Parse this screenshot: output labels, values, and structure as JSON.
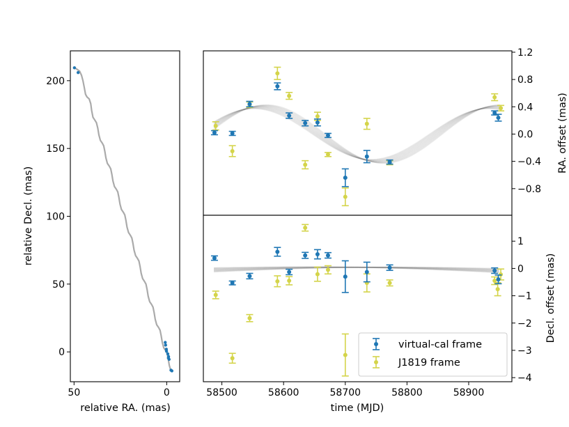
{
  "colors": {
    "virtual": "#1f77b4",
    "j1819": "#d4d44a",
    "track": "#aaaaaa",
    "model": "#555555"
  },
  "chart_data": [
    {
      "id": "sky-track",
      "type": "line",
      "xlabel": "relative RA. (mas)",
      "ylabel": "relative Decl. (mas)",
      "xlim": [
        52,
        -7
      ],
      "ylim": [
        -22,
        222
      ],
      "xticks": [
        50,
        0
      ],
      "yticks": [
        0,
        50,
        100,
        150,
        200
      ],
      "track": [
        [
          50,
          210
        ],
        [
          47,
          207
        ],
        [
          46,
          204
        ],
        [
          45.2,
          200
        ],
        [
          44.5,
          195
        ],
        [
          43.8,
          190
        ],
        [
          43,
          188
        ],
        [
          41.8,
          186.5
        ],
        [
          41,
          183
        ],
        [
          40.5,
          178
        ],
        [
          39.8,
          173
        ],
        [
          38.8,
          171
        ],
        [
          37.9,
          169
        ],
        [
          37.2,
          165
        ],
        [
          36.6,
          160
        ],
        [
          35.8,
          156
        ],
        [
          34.8,
          154
        ],
        [
          34,
          152
        ],
        [
          33.4,
          148
        ],
        [
          32.8,
          143
        ],
        [
          32,
          139
        ],
        [
          31,
          137
        ],
        [
          30.2,
          135
        ],
        [
          29.6,
          131
        ],
        [
          29,
          126
        ],
        [
          28.2,
          122
        ],
        [
          27.2,
          120
        ],
        [
          26.4,
          118
        ],
        [
          25.8,
          114
        ],
        [
          25.2,
          109
        ],
        [
          24.4,
          105
        ],
        [
          23.4,
          103
        ],
        [
          22.6,
          101
        ],
        [
          22,
          97
        ],
        [
          21.4,
          92
        ],
        [
          20.6,
          88
        ],
        [
          19.6,
          86
        ],
        [
          18.8,
          84
        ],
        [
          18.2,
          80
        ],
        [
          17.6,
          75
        ],
        [
          16.8,
          71
        ],
        [
          15.8,
          69
        ],
        [
          15,
          67
        ],
        [
          14.4,
          63
        ],
        [
          13.8,
          58
        ],
        [
          13,
          54
        ],
        [
          12,
          52
        ],
        [
          11.2,
          50
        ],
        [
          10.6,
          46
        ],
        [
          10,
          41
        ],
        [
          9.2,
          37
        ],
        [
          8.2,
          35
        ],
        [
          7.4,
          33
        ],
        [
          6.8,
          29
        ],
        [
          6.2,
          24
        ],
        [
          5.4,
          20
        ],
        [
          4.4,
          18
        ],
        [
          3.6,
          16
        ],
        [
          3,
          12
        ],
        [
          2.4,
          7
        ],
        [
          1.6,
          3
        ],
        [
          0.6,
          1
        ],
        [
          -0.2,
          -1
        ],
        [
          -0.8,
          -5
        ],
        [
          -1.4,
          -10
        ],
        [
          -2.3,
          -14
        ]
      ],
      "points": [
        [
          49.8,
          209.5
        ],
        [
          47.8,
          206
        ],
        [
          0.8,
          7
        ],
        [
          0.6,
          5
        ],
        [
          0.2,
          2
        ],
        [
          0.1,
          0.5
        ],
        [
          -0.6,
          -1.5
        ],
        [
          -1,
          -3.5
        ],
        [
          -0.9,
          -4.5
        ],
        [
          -1.3,
          -5.5
        ],
        [
          -2.3,
          -13.5
        ],
        [
          -2.8,
          -14
        ]
      ]
    },
    {
      "id": "ra-offset",
      "type": "scatter",
      "ylabel": "RA. offset (mas)",
      "xlim": [
        58470,
        58970
      ],
      "ylim": [
        -1.19,
        1.22
      ],
      "yticks": [
        1.2,
        0.8,
        0.4,
        0.0,
        -0.4,
        -0.8
      ],
      "ytick_labels": [
        "1.2",
        "0.8",
        "0.4",
        "0.0",
        "−0.4",
        "−0.8"
      ],
      "model": {
        "amplitude": 0.4,
        "period_days": 380,
        "phase_zero_mjd": 58467
      },
      "series": [
        {
          "name": "virtual-cal frame",
          "x": [
            58488,
            58517,
            58545,
            58590,
            58609,
            58635,
            58655,
            58672,
            58700,
            58735,
            58772,
            58942,
            58948
          ],
          "y": [
            0.02,
            0.01,
            0.44,
            0.7,
            0.27,
            0.16,
            0.17,
            -0.02,
            -0.64,
            -0.33,
            -0.41,
            0.31,
            0.24
          ],
          "err": [
            0.03,
            0.03,
            0.04,
            0.05,
            0.04,
            0.04,
            0.05,
            0.03,
            0.13,
            0.09,
            0.03,
            0.03,
            0.05
          ]
        },
        {
          "name": "J1819 frame",
          "x": [
            58490,
            58517,
            58545,
            58590,
            58609,
            58635,
            58655,
            58672,
            58700,
            58735,
            58772,
            58942,
            58952
          ],
          "y": [
            0.12,
            -0.25,
            0.43,
            0.89,
            0.56,
            -0.45,
            0.26,
            -0.3,
            -0.92,
            0.15,
            -0.42,
            0.54,
            0.38
          ],
          "err": [
            0.06,
            0.08,
            0.04,
            0.09,
            0.05,
            0.06,
            0.06,
            0.03,
            0.13,
            0.08,
            0.03,
            0.05,
            0.04
          ]
        }
      ]
    },
    {
      "id": "decl-offset",
      "type": "scatter",
      "xlabel": "time (MJD)",
      "ylabel": "Decl. offset (mas)",
      "xlim": [
        58470,
        58970
      ],
      "ylim": [
        -4.15,
        1.95
      ],
      "xticks": [
        58500,
        58600,
        58700,
        58800,
        58900
      ],
      "yticks": [
        1,
        0,
        -1,
        -2,
        -3,
        -4
      ],
      "ytick_labels": [
        "1",
        "0",
        "−1",
        "−2",
        "−3",
        "−4"
      ],
      "model": {
        "start": -0.05,
        "mid": 0.05,
        "end": -0.08
      },
      "series": [
        {
          "name": "virtual-cal frame",
          "x": [
            58488,
            58517,
            58545,
            58590,
            58609,
            58635,
            58655,
            58672,
            58700,
            58735,
            58772,
            58942,
            58948
          ],
          "y": [
            0.38,
            -0.53,
            -0.28,
            0.61,
            -0.13,
            0.48,
            0.52,
            0.48,
            -0.3,
            -0.13,
            0.03,
            -0.08,
            -0.4
          ],
          "err": [
            0.08,
            0.07,
            0.1,
            0.16,
            0.1,
            0.11,
            0.17,
            0.1,
            0.58,
            0.36,
            0.1,
            0.1,
            0.16
          ]
        },
        {
          "name": "J1819 frame",
          "x": [
            58490,
            58517,
            58545,
            58590,
            58609,
            58635,
            58655,
            58672,
            58700,
            58735,
            58772,
            58942,
            58947,
            58952
          ],
          "y": [
            -0.97,
            -3.29,
            -1.82,
            -0.47,
            -0.45,
            1.49,
            -0.21,
            -0.05,
            -3.17,
            -0.53,
            -0.53,
            -0.45,
            -0.76,
            -0.22
          ],
          "err": [
            0.14,
            0.18,
            0.13,
            0.2,
            0.15,
            0.12,
            0.26,
            0.15,
            0.77,
            0.33,
            0.11,
            0.14,
            0.24,
            0.2
          ]
        }
      ],
      "legend": {
        "position": "lower-right",
        "entries": [
          "virtual-cal frame",
          "J1819 frame"
        ]
      }
    }
  ]
}
